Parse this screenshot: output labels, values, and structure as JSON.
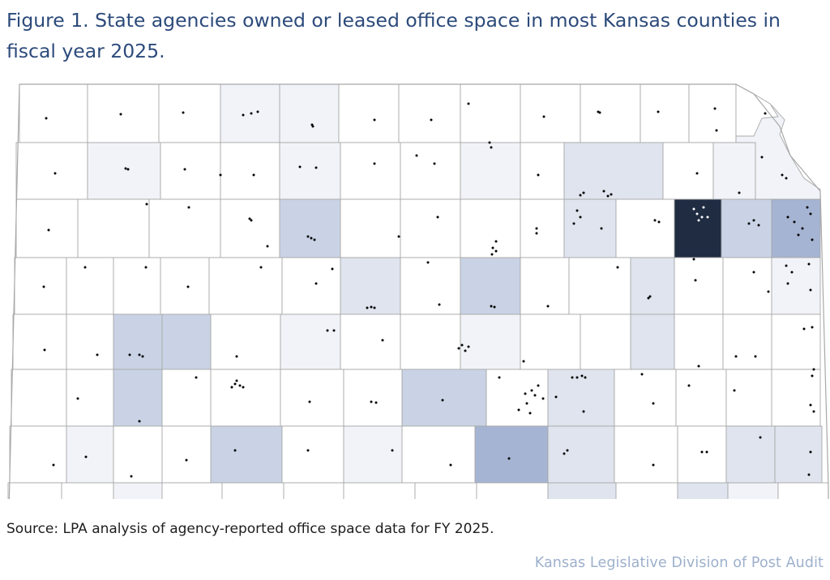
{
  "figure": {
    "title": "Figure 1. State agencies owned or leased office space in most Kansas counties in fiscal year 2025.",
    "source": "Source: LPA analysis of agency-reported office space data for FY 2025.",
    "agency": "Kansas Legislative Division of Post Audit"
  },
  "colors": {
    "border": "#a8a8a8",
    "none": "#ffffff",
    "low": "#f1f3f8",
    "mid": "#dfe4ee",
    "high": "#c9d3e5",
    "higher": "#a5b4d2",
    "max": "#1f2c42",
    "dot": "#000000",
    "dot_on_max": "#ffffff"
  },
  "legend": "none"
}
